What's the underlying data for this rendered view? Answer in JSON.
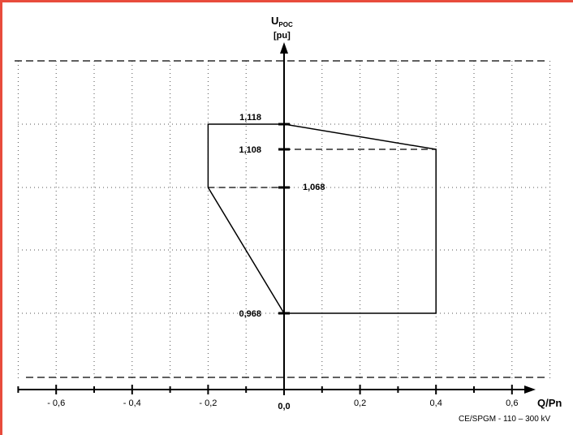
{
  "accent": "#e84c3d",
  "chart_data": {
    "type": "line",
    "title": "",
    "xlabel": "Q/Pn",
    "ylabel_main": "U",
    "ylabel_sub": "POC",
    "ylabel_unit": "[pu]",
    "x_ticks": [
      {
        "value": -0.6,
        "label": "- 0,6"
      },
      {
        "value": -0.4,
        "label": "- 0,4"
      },
      {
        "value": -0.2,
        "label": "- 0,2"
      },
      {
        "value": 0.0,
        "label": "0,0"
      },
      {
        "value": 0.2,
        "label": "0,2"
      },
      {
        "value": 0.4,
        "label": "0,4"
      },
      {
        "value": 0.6,
        "label": "0,6"
      }
    ],
    "y_value_labels": [
      {
        "value": 1.118,
        "label": "1,118"
      },
      {
        "value": 1.108,
        "label": "1,108"
      },
      {
        "value": 1.068,
        "label": "1,068"
      },
      {
        "value": 0.968,
        "label": "0,968"
      }
    ],
    "envelope": {
      "x": [
        0.0,
        0.4,
        0.4,
        0.0,
        -0.2,
        -0.2,
        0.0
      ],
      "y": [
        1.118,
        1.108,
        0.968,
        0.968,
        1.068,
        1.118,
        1.118
      ]
    },
    "dashed_reference_lines": [
      {
        "x_from": 0.0,
        "x_to": 0.4,
        "y": 1.108
      },
      {
        "x_from": -0.2,
        "x_to": 0.0,
        "y": 1.068
      }
    ],
    "xlim": [
      -0.7,
      0.7
    ],
    "grid": true,
    "note": "CE/SPGM - 110 – 300 kV"
  }
}
